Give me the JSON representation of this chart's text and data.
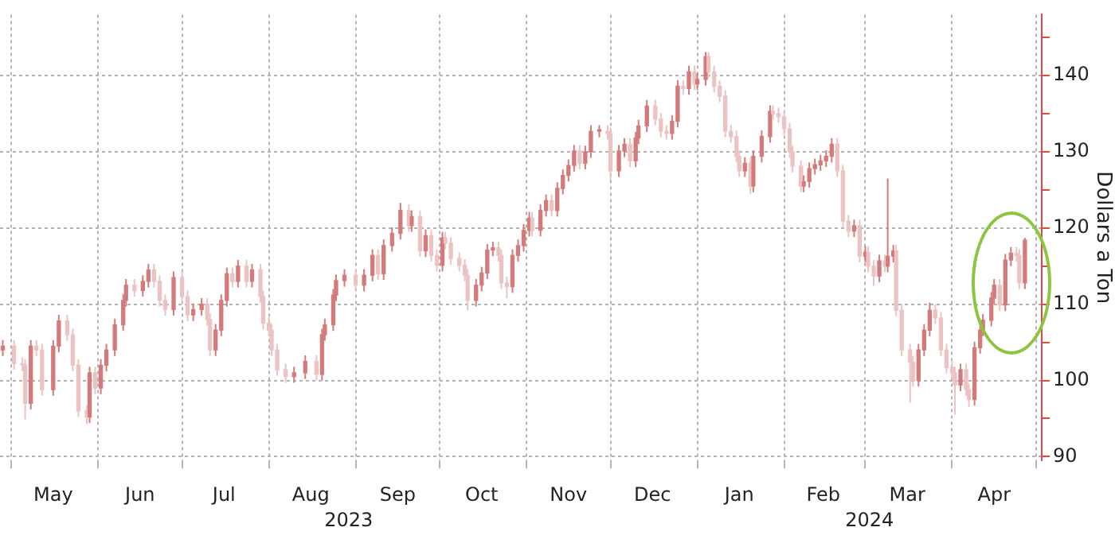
{
  "chart_data": {
    "type": "candlestick",
    "ylabel": "Dollars a Ton",
    "colors": [
      "#d47a7a",
      "#ecc3c3",
      "#ecc3c3",
      "#ecc3c3",
      "#d47a7a",
      "#ecc3c3",
      "#ecc3c3",
      "#d47a7a",
      "#d47a7a",
      "#ecc3c3",
      "#ecc3c3",
      "#ecc3c3",
      "#ecc3c3",
      "#d47a7a",
      "#ecc3c3",
      "#d47a7a",
      "#d47a7a",
      "#d47a7a",
      "#d47a7a",
      "#d47a7a",
      "#ecc3c3",
      "#d47a7a",
      "#d47a7a",
      "#ecc3c3",
      "#ecc3c3",
      "#ecc3c3",
      "#d47a7a",
      "#ecc3c3",
      "#ecc3c3",
      "#d47a7a",
      "#d47a7a",
      "#ecc3c3",
      "#ecc3c3",
      "#d47a7a",
      "#d47a7a",
      "#d47a7a",
      "#ecc3c3",
      "#d47a7a",
      "#ecc3c3",
      "#d47a7a",
      "#ecc3c3",
      "#ecc3c3",
      "#ecc3c3",
      "#ecc3c3",
      "#ecc3c3",
      "#ecc3c3",
      "#d47a7a",
      "#d47a7a",
      "#ecc3c3",
      "#d47a7a",
      "#d47a7a",
      "#d47a7a",
      "#d47a7a",
      "#d47a7a",
      "#ecc3c3",
      "#d47a7a",
      "#d47a7a",
      "#ecc3c3",
      "#d47a7a",
      "#d47a7a",
      "#d47a7a",
      "#ecc3c3",
      "#d47a7a",
      "#ecc3c3",
      "#d47a7a",
      "#ecc3c3",
      "#ecc3c3",
      "#d47a7a",
      "#ecc3c3",
      "#ecc3c3",
      "#ecc3c3",
      "#ecc3c3",
      "#ecc3c3",
      "#d47a7a",
      "#d47a7a",
      "#d47a7a",
      "#d47a7a",
      "#ecc3c3",
      "#ecc3c3",
      "#ecc3c3",
      "#d47a7a",
      "#d47a7a",
      "#d47a7a",
      "#d47a7a",
      "#ecc3c3",
      "#d47a7a",
      "#d47a7a",
      "#ecc3c3",
      "#d47a7a",
      "#d47a7a",
      "#d47a7a",
      "#d47a7a",
      "#ecc3c3",
      "#d47a7a",
      "#d47a7a",
      "#d47a7a",
      "#ecc3c3",
      "#ecc3c3",
      "#d47a7a",
      "#d47a7a",
      "#ecc3c3",
      "#d47a7a",
      "#d47a7a",
      "#d47a7a",
      "#ecc3c3",
      "#ecc3c3",
      "#ecc3c3",
      "#d47a7a",
      "#d47a7a",
      "#ecc3c3",
      "#d47a7a",
      "#ecc3c3",
      "#d47a7a",
      "#d47a7a",
      "#ecc3c3",
      "#ecc3c3",
      "#ecc3c3",
      "#ecc3c3",
      "#ecc3c3",
      "#ecc3c3",
      "#ecc3c3",
      "#d47a7a",
      "#ecc3c3",
      "#d47a7a",
      "#d47a7a",
      "#d47a7a",
      "#ecc3c3",
      "#ecc3c3",
      "#ecc3c3",
      "#ecc3c3",
      "#ecc3c3",
      "#ecc3c3",
      "#d47a7a",
      "#d47a7a",
      "#d47a7a",
      "#d47a7a",
      "#d47a7a",
      "#d47a7a",
      "#ecc3c3",
      "#ecc3c3",
      "#ecc3c3",
      "#d47a7a",
      "#ecc3c3",
      "#d47a7a",
      "#ecc3c3",
      "#ecc3c3",
      "#d47a7a",
      "#ecc3c3",
      "#d47a7a",
      "#d47a7a",
      "#ecc3c3",
      "#ecc3c3",
      "#ecc3c3",
      "#ecc3c3",
      "#d47a7a",
      "#d47a7a",
      "#d47a7a",
      "#ecc3c3",
      "#ecc3c3",
      "#ecc3c3",
      "#ecc3c3",
      "#ecc3c3",
      "#d47a7a",
      "#ecc3c3",
      "#ecc3c3",
      "#d47a7a",
      "#d47a7a",
      "#d47a7a",
      "#d47a7a",
      "#d47a7a",
      "#ecc3c3",
      "#d47a7a",
      "#d47a7a",
      "#ecc3c3",
      "#ecc3c3",
      "#d47a7a"
    ],
    "grid": true,
    "annotations": [
      "2023",
      "2024"
    ],
    "xlim": [
      "2023-04-27",
      "2024-05-03"
    ],
    "xticks": [
      {
        "value": "2023-05-01",
        "label": null
      },
      {
        "value": "2023-05-16",
        "label": "May"
      },
      {
        "value": "2023-06-01",
        "label": null
      },
      {
        "value": "2023-06-16",
        "label": "Jun"
      },
      {
        "value": "2023-07-01",
        "label": null
      },
      {
        "value": "2023-07-16",
        "label": "Jul"
      },
      {
        "value": "2023-08-01",
        "label": null
      },
      {
        "value": "2023-08-16",
        "label": "Aug"
      },
      {
        "value": "2023-09-01",
        "label": null
      },
      {
        "value": "2023-09-16",
        "label": "Sep"
      },
      {
        "value": "2023-10-01",
        "label": null
      },
      {
        "value": "2023-10-16",
        "label": "Oct"
      },
      {
        "value": "2023-11-01",
        "label": null
      },
      {
        "value": "2023-11-16",
        "label": "Nov"
      },
      {
        "value": "2023-12-01",
        "label": null
      },
      {
        "value": "2023-12-16",
        "label": "Dec"
      },
      {
        "value": "2024-01-01",
        "label": null
      },
      {
        "value": "2024-01-16",
        "label": "Jan"
      },
      {
        "value": "2024-02-01",
        "label": null
      },
      {
        "value": "2024-02-15",
        "label": "Feb"
      },
      {
        "value": "2024-03-01",
        "label": null
      },
      {
        "value": "2024-03-16",
        "label": "Mar"
      },
      {
        "value": "2024-04-01",
        "label": null
      },
      {
        "value": "2024-04-16",
        "label": "Apr"
      },
      {
        "value": "2024-05-01",
        "label": null
      }
    ],
    "ylim": [
      89.5,
      148
    ],
    "yticks": [
      90,
      {
        "value": 95,
        "label": null
      },
      100,
      {
        "value": 105,
        "label": null
      },
      110,
      {
        "value": 115,
        "label": null
      },
      120,
      {
        "value": 125,
        "label": null
      },
      130,
      {
        "value": 135,
        "label": null
      },
      140,
      {
        "value": 145,
        "label": null
      }
    ],
    "x": [
      "2023-04-28",
      "2023-05-02",
      "2023-05-05",
      "2023-05-06",
      "2023-05-08",
      "2023-05-10",
      "2023-05-12",
      "2023-05-16",
      "2023-05-18",
      "2023-05-21",
      "2023-05-23",
      "2023-05-25",
      "2023-05-28",
      "2023-05-29",
      "2023-05-31",
      "2023-06-02",
      "2023-06-04",
      "2023-06-07",
      "2023-06-10",
      "2023-06-11",
      "2023-06-14",
      "2023-06-17",
      "2023-06-19",
      "2023-06-21",
      "2023-06-23",
      "2023-06-25",
      "2023-06-28",
      "2023-07-01",
      "2023-07-03",
      "2023-07-05",
      "2023-07-08",
      "2023-07-10",
      "2023-07-11",
      "2023-07-13",
      "2023-07-15",
      "2023-07-17",
      "2023-07-19",
      "2023-07-21",
      "2023-07-24",
      "2023-07-26",
      "2023-07-29",
      "2023-07-30",
      "2023-08-01",
      "2023-08-02",
      "2023-08-04",
      "2023-08-07",
      "2023-08-10",
      "2023-08-14",
      "2023-08-18",
      "2023-08-20",
      "2023-08-21",
      "2023-08-24",
      "2023-08-25",
      "2023-08-28",
      "2023-09-01",
      "2023-09-04",
      "2023-09-07",
      "2023-09-09",
      "2023-09-11",
      "2023-09-14",
      "2023-09-17",
      "2023-09-20",
      "2023-09-21",
      "2023-09-24",
      "2023-09-26",
      "2023-09-28",
      "2023-09-30",
      "2023-10-02",
      "2023-10-03",
      "2023-10-05",
      "2023-10-08",
      "2023-10-10",
      "2023-10-11",
      "2023-10-14",
      "2023-10-16",
      "2023-10-18",
      "2023-10-20",
      "2023-10-22",
      "2023-10-23",
      "2023-10-25",
      "2023-10-27",
      "2023-10-29",
      "2023-10-31",
      "2023-11-02",
      "2023-11-03",
      "2023-11-06",
      "2023-11-08",
      "2023-11-10",
      "2023-11-12",
      "2023-11-14",
      "2023-11-16",
      "2023-11-18",
      "2023-11-20",
      "2023-11-22",
      "2023-11-24",
      "2023-11-27",
      "2023-11-30",
      "2023-12-01",
      "2023-12-04",
      "2023-12-06",
      "2023-12-08",
      "2023-12-10",
      "2023-12-11",
      "2023-12-14",
      "2023-12-17",
      "2023-12-19",
      "2023-12-21",
      "2023-12-23",
      "2023-12-25",
      "2023-12-27",
      "2023-12-29",
      "2023-12-31",
      "2024-01-01",
      "2024-01-04",
      "2024-01-05",
      "2024-01-07",
      "2024-01-09",
      "2024-01-11",
      "2024-01-13",
      "2024-01-15",
      "2024-01-16",
      "2024-01-18",
      "2024-01-20",
      "2024-01-21",
      "2024-01-24",
      "2024-01-27",
      "2024-01-28",
      "2024-01-30",
      "2024-02-01",
      "2024-02-03",
      "2024-02-04",
      "2024-02-07",
      "2024-02-08",
      "2024-02-10",
      "2024-02-12",
      "2024-02-14",
      "2024-02-16",
      "2024-02-18",
      "2024-02-20",
      "2024-02-22",
      "2024-02-24",
      "2024-02-26",
      "2024-02-28",
      "2024-03-01",
      "2024-03-02",
      "2024-03-04",
      "2024-03-06",
      "2024-03-08",
      "2024-03-09",
      "2024-03-11",
      "2024-03-12",
      "2024-03-14",
      "2024-03-17",
      "2024-03-18",
      "2024-03-20",
      "2024-03-22",
      "2024-03-24",
      "2024-03-26",
      "2024-03-28",
      "2024-03-30",
      "2024-04-01",
      "2024-04-02",
      "2024-04-04",
      "2024-04-06",
      "2024-04-07",
      "2024-04-09",
      "2024-04-11",
      "2024-04-12",
      "2024-04-15",
      "2024-04-16",
      "2024-04-18",
      "2024-04-20",
      "2024-04-22",
      "2024-04-24",
      "2024-04-25",
      "2024-04-27"
    ],
    "ohlc": [
      [
        104,
        105.3,
        103.2,
        104.5
      ],
      [
        104.5,
        105.3,
        101.4,
        102.2
      ],
      [
        102.2,
        103,
        101.2,
        102
      ],
      [
        102,
        102.8,
        94.9,
        97
      ],
      [
        97,
        105.3,
        96.2,
        104.5
      ],
      [
        104.5,
        105.3,
        103.2,
        104
      ],
      [
        104,
        104.8,
        98,
        98.8
      ],
      [
        98.8,
        105.3,
        98,
        104.5
      ],
      [
        104.5,
        108.6,
        103.7,
        107.8
      ],
      [
        107.8,
        108.6,
        105.2,
        106
      ],
      [
        106,
        106.8,
        101.2,
        102
      ],
      [
        102,
        102.8,
        95.2,
        96
      ],
      [
        96,
        96.8,
        94.3,
        95.2
      ],
      [
        95.2,
        101.8,
        94.4,
        101
      ],
      [
        101,
        101.8,
        98.2,
        99
      ],
      [
        99,
        102.8,
        98.2,
        102
      ],
      [
        102,
        104.8,
        101.2,
        104
      ],
      [
        104,
        108.1,
        103.2,
        107.3
      ],
      [
        107.3,
        111.3,
        106.5,
        110.5
      ],
      [
        110.5,
        113.3,
        109.7,
        112.5
      ],
      [
        112.5,
        113.3,
        111,
        111.8
      ],
      [
        111.8,
        113.8,
        111,
        113
      ],
      [
        113,
        115.3,
        112.2,
        114.5
      ],
      [
        114.5,
        115.3,
        112.2,
        113
      ],
      [
        113,
        113.8,
        109.7,
        110.5
      ],
      [
        110.5,
        111.3,
        108.5,
        109.3
      ],
      [
        109.3,
        114.3,
        108.5,
        113.5
      ],
      [
        113.5,
        114.3,
        110.2,
        111
      ],
      [
        111,
        111.8,
        107.8,
        108.6
      ],
      [
        108.6,
        110.1,
        107.8,
        109.3
      ],
      [
        109.3,
        110.8,
        108.5,
        110
      ],
      [
        110,
        110.8,
        107.2,
        108
      ],
      [
        108,
        108.8,
        103.2,
        104
      ],
      [
        104,
        107.4,
        103.2,
        106.6
      ],
      [
        106.6,
        111.3,
        105.8,
        110.5
      ],
      [
        110.5,
        114.8,
        109.7,
        114
      ],
      [
        114,
        114.8,
        112.2,
        113
      ],
      [
        113,
        115.8,
        112.2,
        115
      ],
      [
        115,
        115.8,
        112.2,
        113
      ],
      [
        113,
        115.3,
        112.2,
        114.5
      ],
      [
        114.5,
        115.3,
        110.2,
        111
      ],
      [
        111,
        111.8,
        106.7,
        107.5
      ],
      [
        107.5,
        108.3,
        105.8,
        106.6
      ],
      [
        106.6,
        107.4,
        103.2,
        104
      ],
      [
        104,
        104.8,
        100.6,
        101.4
      ],
      [
        101.4,
        102.2,
        99.7,
        100.5
      ],
      [
        100.5,
        101.8,
        99.7,
        101
      ],
      [
        101,
        103.3,
        100.2,
        102.5
      ],
      [
        102.5,
        103.3,
        100,
        100.8
      ],
      [
        100.8,
        106.8,
        100,
        106
      ],
      [
        106,
        108.1,
        105.2,
        107.3
      ],
      [
        107.3,
        112,
        106.5,
        111.2
      ],
      [
        111.2,
        113.9,
        110.4,
        113.1
      ],
      [
        113.1,
        114.6,
        112.3,
        113.8
      ],
      [
        113.8,
        114.6,
        111.7,
        112.5
      ],
      [
        112.5,
        114.6,
        111.7,
        113.8
      ],
      [
        113.8,
        117.2,
        113,
        116.4
      ],
      [
        116.4,
        117.2,
        113.2,
        114
      ],
      [
        114,
        118.5,
        113.2,
        117.7
      ],
      [
        117.7,
        120.1,
        116.9,
        119.3
      ],
      [
        119.3,
        123.3,
        118.5,
        122.3
      ],
      [
        122.3,
        123.1,
        119.5,
        120.3
      ],
      [
        120.3,
        122.3,
        119.5,
        121.5
      ],
      [
        121.5,
        122.3,
        116.2,
        117
      ],
      [
        117,
        119.8,
        116.2,
        119
      ],
      [
        119,
        119.8,
        115.6,
        116.4
      ],
      [
        116.4,
        117.2,
        114.3,
        115.1
      ],
      [
        115.1,
        119.5,
        114.3,
        118.7
      ],
      [
        118.7,
        119.5,
        117.2,
        118
      ],
      [
        118,
        118.8,
        115.2,
        116
      ],
      [
        116,
        116.8,
        114.3,
        115.1
      ],
      [
        115.1,
        115.9,
        113,
        113.8
      ],
      [
        113.8,
        114.6,
        109.2,
        110.5
      ],
      [
        110.5,
        113.3,
        109.7,
        112.5
      ],
      [
        112.5,
        114.9,
        111.7,
        114.1
      ],
      [
        114.1,
        117.9,
        113.3,
        117.1
      ],
      [
        117.1,
        118.2,
        116.3,
        117.4
      ],
      [
        117.4,
        118.2,
        115.6,
        116.4
      ],
      [
        116.4,
        117.2,
        112,
        112.8
      ],
      [
        112.8,
        113.6,
        110.8,
        112.3
      ],
      [
        112.3,
        117.2,
        111.5,
        116.4
      ],
      [
        116.4,
        118.5,
        115.6,
        117.7
      ],
      [
        117.7,
        120.5,
        116.9,
        119.7
      ],
      [
        119.7,
        122.1,
        118.9,
        121.3
      ],
      [
        121.3,
        122.1,
        118.9,
        119.7
      ],
      [
        119.7,
        123.1,
        118.9,
        122.3
      ],
      [
        122.3,
        124.4,
        121.5,
        123.6
      ],
      [
        123.6,
        124.4,
        121.5,
        122.3
      ],
      [
        122.3,
        126,
        121.5,
        125.2
      ],
      [
        125.2,
        127.7,
        124.4,
        126.9
      ],
      [
        126.9,
        129,
        126.1,
        128.2
      ],
      [
        128.2,
        130.9,
        127.4,
        130.1
      ],
      [
        130.1,
        130.9,
        127.7,
        128.5
      ],
      [
        128.5,
        130.8,
        127.7,
        130
      ],
      [
        130,
        133.5,
        129.2,
        132.7
      ],
      [
        132.7,
        133.5,
        131.9,
        132.7
      ],
      [
        132.7,
        133.5,
        131.6,
        132.4
      ],
      [
        132.4,
        133.2,
        126.2,
        127.5
      ],
      [
        127.5,
        130.9,
        126.7,
        130.1
      ],
      [
        130.1,
        131.8,
        129.3,
        131
      ],
      [
        131,
        131.8,
        128,
        128.8
      ],
      [
        128.8,
        132.6,
        128,
        131.8
      ],
      [
        131.8,
        134.2,
        131,
        133.4
      ],
      [
        133.4,
        136.8,
        132.6,
        136
      ],
      [
        136,
        136.8,
        133.5,
        134.3
      ],
      [
        134.3,
        135.1,
        131.9,
        132.7
      ],
      [
        132.7,
        133.5,
        131.6,
        132.4
      ],
      [
        132.4,
        134.8,
        131.6,
        134
      ],
      [
        134,
        139.4,
        133.2,
        138.6
      ],
      [
        138.6,
        139.4,
        137.5,
        138.3
      ],
      [
        138.3,
        141.3,
        137.5,
        140.5
      ],
      [
        140.5,
        141.3,
        138.1,
        138.9
      ],
      [
        138.9,
        140.3,
        138.1,
        139.5
      ],
      [
        139.5,
        143.1,
        138.7,
        142.5
      ],
      [
        142.5,
        143.1,
        139.7,
        140.5
      ],
      [
        140.5,
        141.3,
        137.8,
        138.6
      ],
      [
        138.6,
        139.4,
        136.5,
        137.3
      ],
      [
        137.3,
        138.1,
        131.9,
        132.7
      ],
      [
        132.7,
        133.5,
        131.2,
        132
      ],
      [
        132,
        132.8,
        128.6,
        129.4
      ],
      [
        129.4,
        130.2,
        126.7,
        127.5
      ],
      [
        127.5,
        129.3,
        126.7,
        128.5
      ],
      [
        128.5,
        129.3,
        124.5,
        125.5
      ],
      [
        125.5,
        130.2,
        124.7,
        129.4
      ],
      [
        129.4,
        132.8,
        128.6,
        132
      ],
      [
        132,
        136.1,
        131.2,
        135.3
      ],
      [
        135.3,
        136.1,
        134.2,
        135
      ],
      [
        135,
        135.8,
        133.8,
        134.6
      ],
      [
        134.6,
        135.4,
        132.2,
        133
      ],
      [
        133,
        133.8,
        129.2,
        130
      ],
      [
        130,
        130.8,
        127.3,
        128.1
      ],
      [
        128.1,
        128.9,
        124.7,
        125.5
      ],
      [
        125.5,
        126.9,
        124.7,
        126.1
      ],
      [
        126.1,
        128.6,
        125.3,
        127.8
      ],
      [
        127.8,
        129.1,
        127,
        128.3
      ],
      [
        128.3,
        129.6,
        127.5,
        128.8
      ],
      [
        128.8,
        130.2,
        128,
        129.4
      ],
      [
        129.4,
        131.8,
        128.6,
        131
      ],
      [
        131,
        131.8,
        126.7,
        127.5
      ],
      [
        127.5,
        128.3,
        120.1,
        120.9
      ],
      [
        120.9,
        121.7,
        118.8,
        119.6
      ],
      [
        119.6,
        121.1,
        118.8,
        120.3
      ],
      [
        120.3,
        121.1,
        115.5,
        116.3
      ],
      [
        116.3,
        117.6,
        115.5,
        116.8
      ],
      [
        116.8,
        117.6,
        114.2,
        115
      ],
      [
        115,
        115.8,
        112.4,
        113.7
      ],
      [
        113.7,
        116.5,
        112.9,
        115.7
      ],
      [
        115.7,
        116.5,
        114.2,
        115
      ],
      [
        115,
        126.5,
        114.2,
        116.3
      ],
      [
        116.3,
        117.8,
        115.5,
        117
      ],
      [
        117,
        117.8,
        108.4,
        109.2
      ],
      [
        109.2,
        110,
        103.2,
        104
      ],
      [
        104,
        104.8,
        97.1,
        102.4
      ],
      [
        102.4,
        103.2,
        99.2,
        100
      ],
      [
        100,
        104.8,
        99.2,
        104
      ],
      [
        104,
        107.4,
        103.2,
        106.6
      ],
      [
        106.6,
        110.2,
        105.8,
        109.2
      ],
      [
        109.2,
        110,
        107.4,
        108.2
      ],
      [
        108.2,
        109,
        103.2,
        104
      ],
      [
        104,
        104.8,
        100.9,
        101.7
      ],
      [
        101.7,
        102.5,
        100.2,
        101
      ],
      [
        101,
        101.8,
        95.5,
        99.4
      ],
      [
        99.4,
        102.2,
        98.6,
        101.4
      ],
      [
        101.4,
        102.2,
        98,
        98.8
      ],
      [
        98.8,
        99.6,
        96.5,
        97.5
      ],
      [
        97.5,
        105.1,
        96.7,
        104.3
      ],
      [
        104.3,
        107.4,
        103.5,
        106.6
      ],
      [
        106.6,
        108.7,
        105.8,
        107.9
      ],
      [
        107.9,
        111.6,
        107.1,
        110.8
      ],
      [
        110.8,
        113.3,
        110,
        112.5
      ],
      [
        112.5,
        113.3,
        109.1,
        109.9
      ],
      [
        109.9,
        116.6,
        109.1,
        115.8
      ],
      [
        115.8,
        117.5,
        115,
        116.7
      ],
      [
        116.7,
        117.5,
        115.6,
        116.4
      ],
      [
        116.4,
        117.2,
        112,
        112.8
      ],
      [
        112.8,
        118.7,
        112,
        118.4
      ]
    ]
  }
}
